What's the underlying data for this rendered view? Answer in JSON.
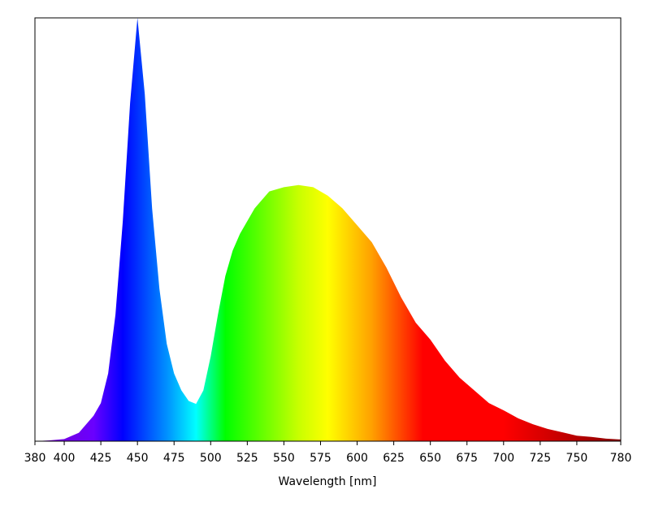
{
  "chart_data": {
    "type": "area",
    "x": [
      380,
      390,
      400,
      410,
      420,
      425,
      430,
      435,
      440,
      445,
      450,
      455,
      460,
      465,
      470,
      475,
      480,
      485,
      490,
      495,
      500,
      505,
      510,
      515,
      520,
      530,
      540,
      550,
      560,
      570,
      580,
      590,
      600,
      610,
      620,
      630,
      640,
      650,
      660,
      670,
      680,
      690,
      700,
      710,
      720,
      730,
      740,
      750,
      760,
      770,
      780
    ],
    "values": [
      0.0,
      0.002,
      0.005,
      0.02,
      0.06,
      0.09,
      0.16,
      0.3,
      0.52,
      0.8,
      1.0,
      0.82,
      0.55,
      0.36,
      0.23,
      0.16,
      0.12,
      0.095,
      0.088,
      0.12,
      0.2,
      0.3,
      0.39,
      0.45,
      0.49,
      0.55,
      0.59,
      0.6,
      0.605,
      0.6,
      0.58,
      0.55,
      0.51,
      0.47,
      0.41,
      0.34,
      0.28,
      0.24,
      0.19,
      0.15,
      0.12,
      0.09,
      0.073,
      0.054,
      0.04,
      0.029,
      0.021,
      0.013,
      0.01,
      0.006,
      0.004
    ],
    "xlim": [
      380,
      780
    ],
    "ylim": [
      0,
      1
    ],
    "xticks": [
      380,
      400,
      425,
      450,
      475,
      500,
      525,
      550,
      575,
      600,
      625,
      650,
      675,
      700,
      725,
      750,
      780
    ],
    "xlabel": "Wavelength [nm]",
    "gradient": [
      {
        "x": 380,
        "color": "#7a00c8"
      },
      {
        "x": 420,
        "color": "#6a00ff"
      },
      {
        "x": 440,
        "color": "#0000ff"
      },
      {
        "x": 470,
        "color": "#0090ff"
      },
      {
        "x": 490,
        "color": "#00ffff"
      },
      {
        "x": 510,
        "color": "#00ff00"
      },
      {
        "x": 560,
        "color": "#c8ff00"
      },
      {
        "x": 580,
        "color": "#ffff00"
      },
      {
        "x": 610,
        "color": "#ffa000"
      },
      {
        "x": 645,
        "color": "#ff0000"
      },
      {
        "x": 700,
        "color": "#ff0000"
      },
      {
        "x": 780,
        "color": "#8a0000"
      }
    ]
  }
}
